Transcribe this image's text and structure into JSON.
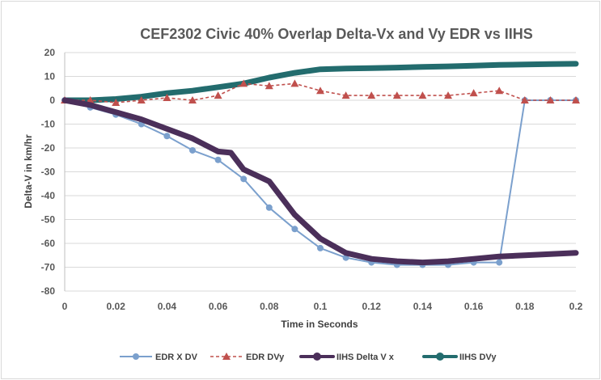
{
  "chart_data": {
    "type": "line",
    "title": "CEF2302 Civic 40% Overlap Delta-Vx and Vy EDR vs IIHS",
    "xlabel": "Time in Seconds",
    "ylabel": "Delta-V in km/hr",
    "xlim": [
      0,
      0.2
    ],
    "ylim": [
      -80,
      20
    ],
    "x_ticks": [
      "0",
      "0.02",
      "0.04",
      "0.06",
      "0.08",
      "0.1",
      "0.12",
      "0.14",
      "0.16",
      "0.18",
      "0.2"
    ],
    "x_tick_values": [
      0,
      0.02,
      0.04,
      0.06,
      0.08,
      0.1,
      0.12,
      0.14,
      0.16,
      0.18,
      0.2
    ],
    "y_ticks": [
      "20",
      "10",
      "0",
      "-10",
      "-20",
      "-30",
      "-40",
      "-50",
      "-60",
      "-70",
      "-80"
    ],
    "y_tick_values": [
      20,
      10,
      0,
      -10,
      -20,
      -30,
      -40,
      -50,
      -60,
      -70,
      -80
    ],
    "grid": "horizontal",
    "legend_position": "bottom",
    "series": [
      {
        "name": "EDR X DV",
        "color": "#7ba0cd",
        "style": "line-circle",
        "x": [
          0,
          0.01,
          0.02,
          0.03,
          0.04,
          0.05,
          0.06,
          0.07,
          0.08,
          0.09,
          0.1,
          0.11,
          0.12,
          0.13,
          0.14,
          0.15,
          0.16,
          0.17,
          0.18,
          0.19,
          0.2
        ],
        "y": [
          0,
          -3,
          -6,
          -10,
          -15,
          -21,
          -25,
          -33,
          -45,
          -54,
          -62,
          -66,
          -68,
          -69,
          -69,
          -69,
          -68,
          -68,
          0,
          0,
          0
        ]
      },
      {
        "name": "EDR DVy",
        "color": "#c0504d",
        "style": "dashed-triangle",
        "x": [
          0,
          0.01,
          0.02,
          0.03,
          0.04,
          0.05,
          0.06,
          0.07,
          0.08,
          0.09,
          0.1,
          0.11,
          0.12,
          0.13,
          0.14,
          0.15,
          0.16,
          0.17,
          0.18,
          0.19,
          0.2
        ],
        "y": [
          0,
          0,
          -1,
          0,
          1,
          0,
          2,
          7,
          6,
          7,
          4,
          2,
          2,
          2,
          2,
          2,
          3,
          4,
          0,
          0,
          0
        ]
      },
      {
        "name": "IIHS Delta V x",
        "color": "#4b2f5a",
        "style": "thick-line",
        "x": [
          0,
          0.01,
          0.02,
          0.03,
          0.04,
          0.05,
          0.06,
          0.065,
          0.07,
          0.075,
          0.08,
          0.09,
          0.1,
          0.11,
          0.12,
          0.13,
          0.14,
          0.15,
          0.16,
          0.17,
          0.18,
          0.19,
          0.2
        ],
        "y": [
          0,
          -2,
          -5,
          -8,
          -12,
          -16,
          -21.5,
          -22,
          -29,
          -31.5,
          -34,
          -48,
          -58,
          -64,
          -66.5,
          -67.5,
          -68,
          -67.5,
          -66.5,
          -65.5,
          -65,
          -64.5,
          -64
        ]
      },
      {
        "name": "IIHS DVy",
        "color": "#236c6e",
        "style": "thick-line",
        "x": [
          0,
          0.01,
          0.02,
          0.03,
          0.04,
          0.05,
          0.06,
          0.07,
          0.08,
          0.09,
          0.1,
          0.11,
          0.12,
          0.13,
          0.14,
          0.15,
          0.16,
          0.17,
          0.18,
          0.19,
          0.2
        ],
        "y": [
          0,
          0,
          0.5,
          1.5,
          3,
          4,
          5.5,
          7,
          9.5,
          11.5,
          13,
          13.3,
          13.5,
          13.7,
          14,
          14.2,
          14.5,
          14.8,
          15,
          15.2,
          15.3
        ]
      }
    ]
  }
}
